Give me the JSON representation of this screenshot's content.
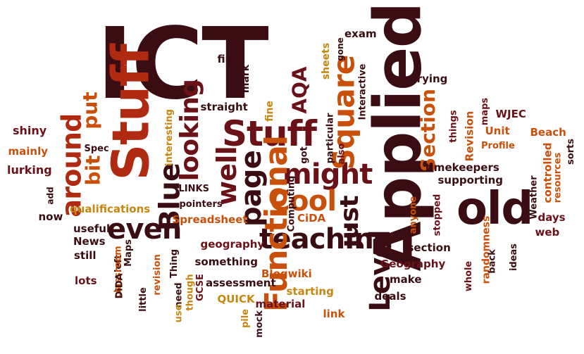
{
  "palette": {
    "dark": "#3a0d12",
    "maroon": "#6b1118",
    "red": "#b02a12",
    "orange": "#c8500b",
    "gold": "#c6860f",
    "brown": "#5a3410"
  },
  "words": [
    {
      "text": "ICT",
      "color": "dark",
      "orientation": "horizontal",
      "weight": "xl"
    },
    {
      "text": "Stuff",
      "color": "red",
      "orientation": "vertical",
      "weight": "xl"
    },
    {
      "text": "Applied",
      "color": "dark",
      "orientation": "vertical",
      "weight": "xl"
    },
    {
      "text": "Stuff",
      "color": "maroon",
      "orientation": "horizontal",
      "weight": "l"
    },
    {
      "text": "old",
      "color": "dark",
      "orientation": "horizontal",
      "weight": "l"
    },
    {
      "text": "might",
      "color": "maroon",
      "orientation": "horizontal",
      "weight": "l"
    },
    {
      "text": "teaching",
      "color": "dark",
      "orientation": "horizontal",
      "weight": "l"
    },
    {
      "text": "Functional",
      "color": "orange",
      "orientation": "vertical",
      "weight": "l"
    },
    {
      "text": "Level",
      "color": "dark",
      "orientation": "vertical",
      "weight": "l"
    },
    {
      "text": "Blue",
      "color": "dark",
      "orientation": "vertical",
      "weight": "l"
    },
    {
      "text": "even",
      "color": "dark",
      "orientation": "horizontal",
      "weight": "l"
    },
    {
      "text": "Cool",
      "color": "orange",
      "orientation": "horizontal",
      "weight": "l"
    },
    {
      "text": "Square",
      "color": "orange",
      "orientation": "vertical",
      "weight": "l"
    },
    {
      "text": "page",
      "color": "dark",
      "orientation": "vertical",
      "weight": "l"
    },
    {
      "text": "well",
      "color": "maroon",
      "orientation": "vertical",
      "weight": "l"
    },
    {
      "text": "around",
      "color": "red",
      "orientation": "vertical",
      "weight": "l"
    },
    {
      "text": "looking",
      "color": "maroon",
      "orientation": "vertical",
      "weight": "l"
    },
    {
      "text": "just",
      "color": "dark",
      "orientation": "vertical",
      "weight": "l"
    },
    {
      "text": "bit",
      "color": "orange",
      "orientation": "vertical",
      "weight": "m"
    },
    {
      "text": "put",
      "color": "orange",
      "orientation": "vertical",
      "weight": "m"
    },
    {
      "text": "AQA",
      "color": "maroon",
      "orientation": "vertical",
      "weight": "m"
    },
    {
      "text": "Section",
      "color": "orange",
      "orientation": "vertical",
      "weight": "m"
    },
    {
      "text": "find",
      "color": "dark",
      "orientation": "horizontal",
      "weight": "s"
    },
    {
      "text": "exam",
      "color": "dark",
      "orientation": "horizontal",
      "weight": "s"
    },
    {
      "text": "sheets",
      "color": "gold",
      "orientation": "vertical",
      "weight": "s"
    },
    {
      "text": "gone",
      "color": "dark",
      "orientation": "vertical",
      "weight": "s"
    },
    {
      "text": "mark",
      "color": "dark",
      "orientation": "vertical",
      "weight": "s"
    },
    {
      "text": "Interactive",
      "color": "dark",
      "orientation": "vertical",
      "weight": "s"
    },
    {
      "text": "trying",
      "color": "dark",
      "orientation": "horizontal",
      "weight": "s"
    },
    {
      "text": "straight",
      "color": "dark",
      "orientation": "horizontal",
      "weight": "s"
    },
    {
      "text": "fine",
      "color": "gold",
      "orientation": "vertical",
      "weight": "s"
    },
    {
      "text": "particular",
      "color": "dark",
      "orientation": "vertical",
      "weight": "s"
    },
    {
      "text": "maps",
      "color": "maroon",
      "orientation": "vertical",
      "weight": "s"
    },
    {
      "text": "things",
      "color": "maroon",
      "orientation": "vertical",
      "weight": "s"
    },
    {
      "text": "WJEC",
      "color": "maroon",
      "orientation": "horizontal",
      "weight": "s"
    },
    {
      "text": "Unit",
      "color": "orange",
      "orientation": "horizontal",
      "weight": "s"
    },
    {
      "text": "Beach",
      "color": "orange",
      "orientation": "horizontal",
      "weight": "s"
    },
    {
      "text": "shiny",
      "color": "maroon",
      "orientation": "horizontal",
      "weight": "s"
    },
    {
      "text": "mainly",
      "color": "orange",
      "orientation": "horizontal",
      "weight": "s"
    },
    {
      "text": "lurking",
      "color": "maroon",
      "orientation": "horizontal",
      "weight": "s"
    },
    {
      "text": "Spec",
      "color": "dark",
      "orientation": "horizontal",
      "weight": "s"
    },
    {
      "text": "interesting",
      "color": "gold",
      "orientation": "vertical",
      "weight": "s"
    },
    {
      "text": "got",
      "color": "dark",
      "orientation": "vertical",
      "weight": "s"
    },
    {
      "text": "also",
      "color": "maroon",
      "orientation": "vertical",
      "weight": "s"
    },
    {
      "text": "Revision",
      "color": "orange",
      "orientation": "vertical",
      "weight": "s"
    },
    {
      "text": "Profile",
      "color": "orange",
      "orientation": "horizontal",
      "weight": "s"
    },
    {
      "text": "controlled",
      "color": "orange",
      "orientation": "vertical",
      "weight": "s"
    },
    {
      "text": "sorts",
      "color": "dark",
      "orientation": "vertical",
      "weight": "s"
    },
    {
      "text": "resources",
      "color": "orange",
      "orientation": "vertical",
      "weight": "s"
    },
    {
      "text": "timekeepers",
      "color": "dark",
      "orientation": "horizontal",
      "weight": "s"
    },
    {
      "text": "supporting",
      "color": "dark",
      "orientation": "horizontal",
      "weight": "s"
    },
    {
      "text": "Weather",
      "color": "dark",
      "orientation": "vertical",
      "weight": "s"
    },
    {
      "text": "Computing",
      "color": "dark",
      "orientation": "vertical",
      "weight": "s"
    },
    {
      "text": "LINKS",
      "color": "dark",
      "orientation": "horizontal",
      "weight": "s"
    },
    {
      "text": "pointers",
      "color": "dark",
      "orientation": "horizontal",
      "weight": "s"
    },
    {
      "text": "add",
      "color": "dark",
      "orientation": "vertical",
      "weight": "s"
    },
    {
      "text": "now",
      "color": "dark",
      "orientation": "horizontal",
      "weight": "s"
    },
    {
      "text": "qualifications",
      "color": "gold",
      "orientation": "horizontal",
      "weight": "s"
    },
    {
      "text": "Spreadsheet",
      "color": "orange",
      "orientation": "horizontal",
      "weight": "s"
    },
    {
      "text": "CiDA",
      "color": "orange",
      "orientation": "horizontal",
      "weight": "s"
    },
    {
      "text": "anyone",
      "color": "orange",
      "orientation": "vertical",
      "weight": "s"
    },
    {
      "text": "stopped",
      "color": "maroon",
      "orientation": "vertical",
      "weight": "s"
    },
    {
      "text": "randomness",
      "color": "orange",
      "orientation": "vertical",
      "weight": "s"
    },
    {
      "text": "days",
      "color": "maroon",
      "orientation": "horizontal",
      "weight": "s"
    },
    {
      "text": "web",
      "color": "maroon",
      "orientation": "horizontal",
      "weight": "s"
    },
    {
      "text": "useful",
      "color": "dark",
      "orientation": "horizontal",
      "weight": "s"
    },
    {
      "text": "News",
      "color": "dark",
      "orientation": "horizontal",
      "weight": "s"
    },
    {
      "text": "still",
      "color": "dark",
      "orientation": "horizontal",
      "weight": "s"
    },
    {
      "text": "lots",
      "color": "maroon",
      "orientation": "horizontal",
      "weight": "s"
    },
    {
      "text": "left",
      "color": "dark",
      "orientation": "vertical",
      "weight": "s"
    },
    {
      "text": "classroom",
      "color": "orange",
      "orientation": "vertical",
      "weight": "s"
    },
    {
      "text": "DiDA",
      "color": "dark",
      "orientation": "vertical",
      "weight": "s"
    },
    {
      "text": "Maps",
      "color": "dark",
      "orientation": "vertical",
      "weight": "s"
    },
    {
      "text": "revision",
      "color": "orange",
      "orientation": "vertical",
      "weight": "s"
    },
    {
      "text": "Thing",
      "color": "dark",
      "orientation": "vertical",
      "weight": "s"
    },
    {
      "text": "little",
      "color": "dark",
      "orientation": "vertical",
      "weight": "s"
    },
    {
      "text": "geography",
      "color": "maroon",
      "orientation": "horizontal",
      "weight": "s"
    },
    {
      "text": "something",
      "color": "dark",
      "orientation": "horizontal",
      "weight": "s"
    },
    {
      "text": "though",
      "color": "gold",
      "orientation": "vertical",
      "weight": "s"
    },
    {
      "text": "need",
      "color": "dark",
      "orientation": "vertical",
      "weight": "s"
    },
    {
      "text": "use",
      "color": "gold",
      "orientation": "vertical",
      "weight": "s"
    },
    {
      "text": "GCSE",
      "color": "maroon",
      "orientation": "vertical",
      "weight": "s"
    },
    {
      "text": "assessment",
      "color": "dark",
      "orientation": "horizontal",
      "weight": "s"
    },
    {
      "text": "QUICK",
      "color": "gold",
      "orientation": "horizontal",
      "weight": "s"
    },
    {
      "text": "material",
      "color": "maroon",
      "orientation": "horizontal",
      "weight": "s"
    },
    {
      "text": "pile",
      "color": "gold",
      "orientation": "vertical",
      "weight": "s"
    },
    {
      "text": "mock",
      "color": "dark",
      "orientation": "vertical",
      "weight": "s"
    },
    {
      "text": "Blogwiki",
      "color": "orange",
      "orientation": "horizontal",
      "weight": "s"
    },
    {
      "text": "starting",
      "color": "gold",
      "orientation": "horizontal",
      "weight": "s"
    },
    {
      "text": "link",
      "color": "orange",
      "orientation": "horizontal",
      "weight": "s"
    },
    {
      "text": "make",
      "color": "dark",
      "orientation": "horizontal",
      "weight": "s"
    },
    {
      "text": "deals",
      "color": "dark",
      "orientation": "horizontal",
      "weight": "s"
    },
    {
      "text": "Geography",
      "color": "maroon",
      "orientation": "horizontal",
      "weight": "s"
    },
    {
      "text": "section",
      "color": "dark",
      "orientation": "horizontal",
      "weight": "s"
    },
    {
      "text": "whole",
      "color": "maroon",
      "orientation": "vertical",
      "weight": "s"
    },
    {
      "text": "back",
      "color": "dark",
      "orientation": "vertical",
      "weight": "s"
    },
    {
      "text": "ideas",
      "color": "dark",
      "orientation": "vertical",
      "weight": "s"
    }
  ]
}
